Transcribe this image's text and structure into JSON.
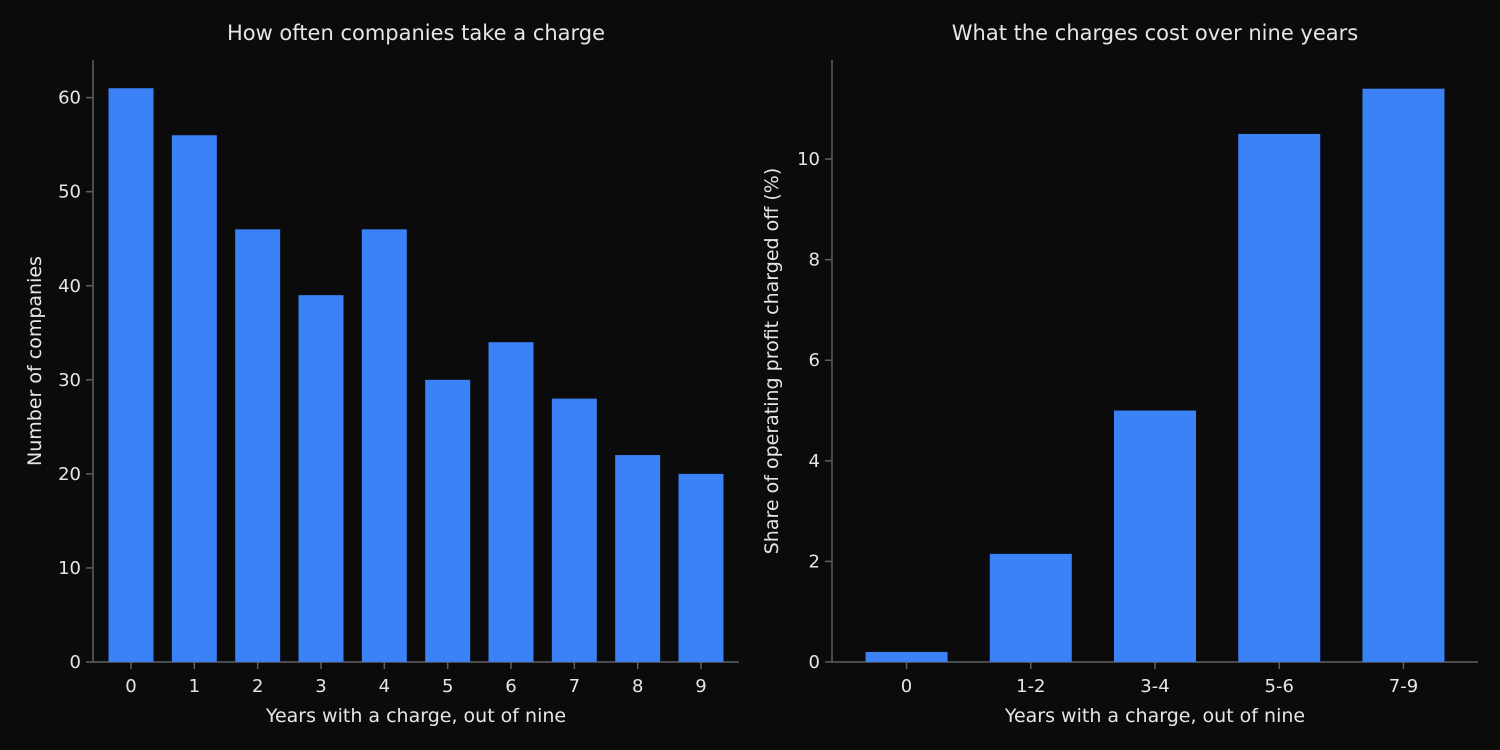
{
  "chart_data": [
    {
      "type": "bar",
      "title": "How often companies take a charge",
      "xlabel": "Years with a charge, out of nine",
      "ylabel": "Number of companies",
      "categories": [
        "0",
        "1",
        "2",
        "3",
        "4",
        "5",
        "6",
        "7",
        "8",
        "9"
      ],
      "values": [
        61,
        56,
        46,
        39,
        46,
        30,
        34,
        28,
        22,
        20
      ],
      "ylim": [
        0,
        64
      ],
      "yticks": [
        0,
        10,
        20,
        30,
        40,
        50,
        60
      ],
      "grid": false,
      "color": "#3b82f6"
    },
    {
      "type": "bar",
      "title": "What the charges cost over nine years",
      "xlabel": "Years with a charge, out of nine",
      "ylabel": "Share of operating profit charged off (%)",
      "categories": [
        "0",
        "1-2",
        "3-4",
        "5-6",
        "7-9"
      ],
      "values": [
        0.2,
        2.15,
        5.0,
        10.5,
        11.4
      ],
      "ylim": [
        0,
        11.97
      ],
      "yticks": [
        0,
        2,
        4,
        6,
        8,
        10
      ],
      "grid": false,
      "color": "#3b82f6"
    }
  ],
  "theme": {
    "background": "#0b0b0c",
    "text_color": "#e6e6e6",
    "axis_color": "#5f5f5f",
    "bar_color": "#3b82f6"
  }
}
